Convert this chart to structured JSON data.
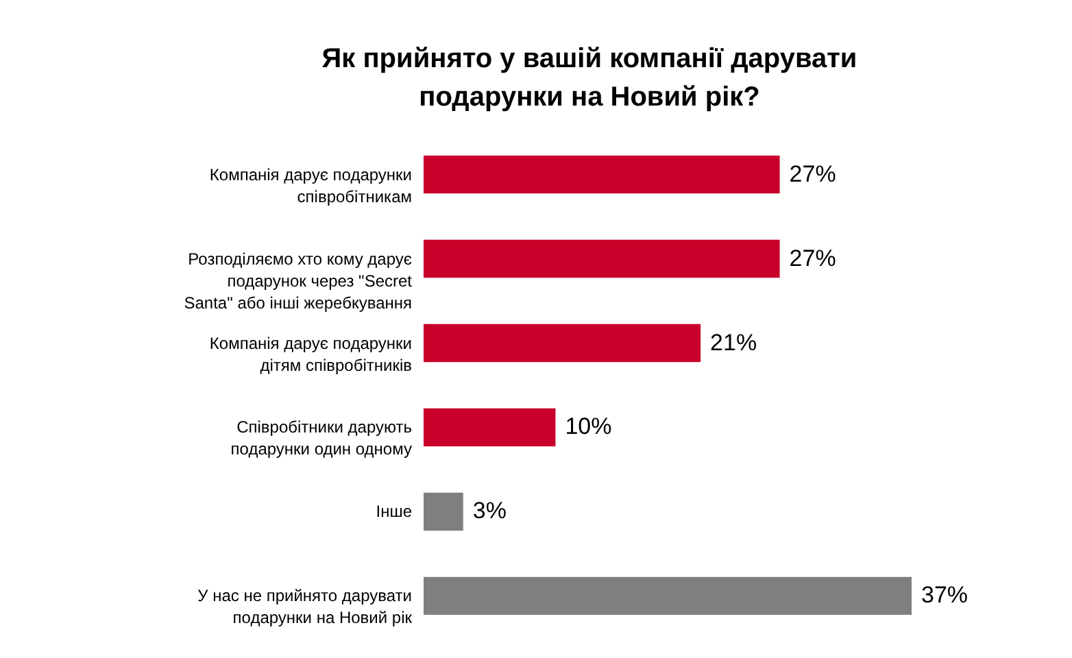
{
  "chart_data": {
    "type": "bar",
    "orientation": "horizontal",
    "title": "Як прийнято у вашій компанії дарувати подарунки на Новий рік?",
    "categories": [
      "Компанія дарує подарунки співробітникам",
      "Розподіляємо хто кому дарує подарунок через \"Secret Santa\" або інші жеребкування",
      "Компанія дарує подарунки дітям співробітників",
      "Співробітники дарують подарунки один одному",
      "Інше",
      "У нас не прийнято дарувати подарунки на Новий рік"
    ],
    "values": [
      27,
      27,
      21,
      10,
      3,
      37
    ],
    "value_labels": [
      "27%",
      "27%",
      "21%",
      "10%",
      "3%",
      "37%"
    ],
    "colors": [
      "#c8002a",
      "#c8002a",
      "#c8002a",
      "#c8002a",
      "#7f7f7f",
      "#7f7f7f"
    ],
    "grid": false
  }
}
